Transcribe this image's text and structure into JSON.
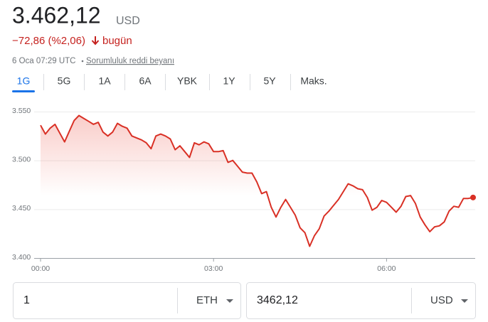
{
  "header": {
    "price": "3.462,12",
    "currency": "USD",
    "change": "−72,86 (%2,06)",
    "period": "bugün",
    "timestamp": "6 Oca 07:29 UTC",
    "disclaimer": "Sorumluluk reddi beyanı"
  },
  "tabs": [
    "1G",
    "5G",
    "1A",
    "6A",
    "YBK",
    "1Y",
    "5Y",
    "Maks."
  ],
  "selected_tab": 0,
  "chart_data": {
    "type": "line",
    "color": "#d93025",
    "x": [
      0,
      5,
      10,
      15,
      20,
      25,
      30,
      35,
      40,
      45,
      50,
      55,
      60,
      65,
      70,
      75,
      80,
      85,
      90,
      95,
      100,
      105,
      110,
      115,
      120,
      125,
      130,
      135,
      140,
      145,
      150,
      155,
      160,
      165,
      170,
      175,
      180,
      185,
      190,
      195,
      200,
      205,
      210,
      215,
      220,
      225,
      230,
      235,
      240,
      245,
      250,
      255,
      260,
      265,
      270,
      275,
      280,
      285,
      290,
      295,
      300,
      305,
      310,
      315,
      320,
      325,
      330,
      335,
      340,
      345,
      350,
      355,
      360,
      365,
      370,
      375,
      380,
      385,
      390,
      395,
      400,
      405,
      410,
      415,
      420,
      425,
      430,
      435,
      440,
      445,
      450
    ],
    "values": [
      3536,
      3527,
      3533,
      3537,
      3528,
      3519,
      3530,
      3541,
      3546,
      3543,
      3540,
      3537,
      3539,
      3529,
      3525,
      3529,
      3538,
      3535,
      3533,
      3525,
      3523,
      3521,
      3518,
      3512,
      3525,
      3527,
      3525,
      3522,
      3511,
      3515,
      3509,
      3503,
      3518,
      3516,
      3519,
      3517,
      3509,
      3509,
      3510,
      3498,
      3500,
      3494,
      3488,
      3487,
      3487,
      3478,
      3466,
      3468,
      3452,
      3442,
      3452,
      3460,
      3452,
      3444,
      3431,
      3426,
      3412,
      3423,
      3430,
      3443,
      3448,
      3454,
      3460,
      3468,
      3476,
      3474,
      3471,
      3470,
      3462,
      3449,
      3452,
      3459,
      3457,
      3452,
      3447,
      3453,
      3463,
      3464,
      3456,
      3442,
      3434,
      3427,
      3432,
      3433,
      3437,
      3448,
      3453,
      3452,
      3461,
      3461,
      3462
    ],
    "xlim": [
      0,
      450
    ],
    "xticks": [
      {
        "value": 0,
        "label": "00:00"
      },
      {
        "value": 180,
        "label": "03:00"
      },
      {
        "value": 360,
        "label": "06:00"
      }
    ],
    "ylim": [
      3400,
      3550
    ],
    "yticks": [
      {
        "value": 3400,
        "label": "3.400"
      },
      {
        "value": 3450,
        "label": "3.450"
      },
      {
        "value": 3500,
        "label": "3.500"
      },
      {
        "value": 3550,
        "label": "3.550"
      }
    ],
    "grid": true
  },
  "converter": {
    "from": {
      "amount": "1",
      "unit": "ETH"
    },
    "to": {
      "amount": "3462,12",
      "unit": "USD"
    }
  }
}
